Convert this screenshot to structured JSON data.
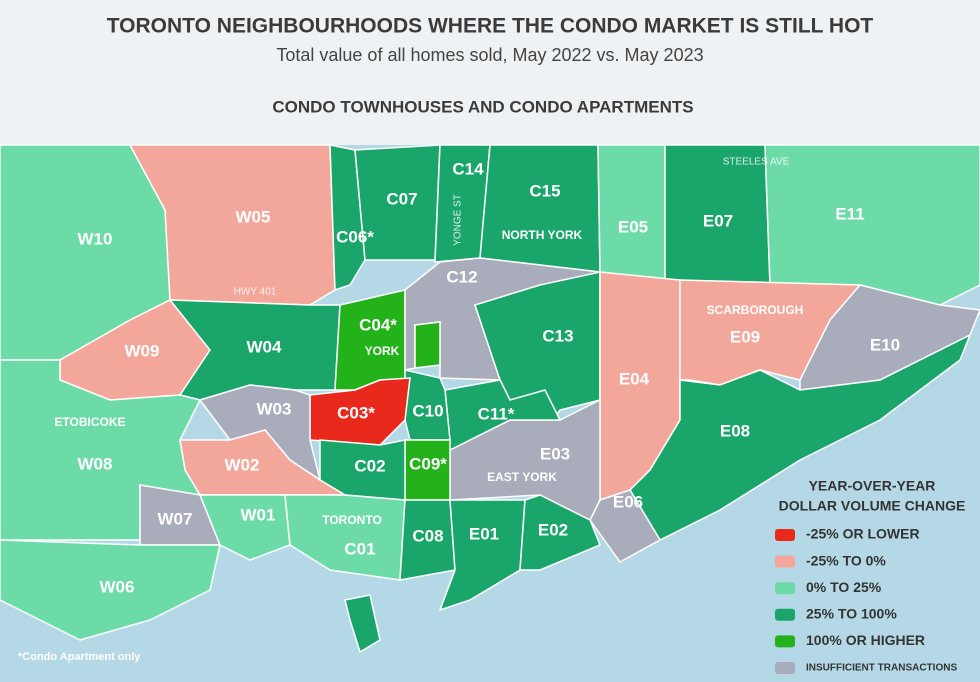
{
  "header": {
    "title": "TORONTO NEIGHBOURHOODS WHERE THE CONDO MARKET IS STILL HOT",
    "subtitle": "Total value of all homes sold, May 2022 vs. May 2023",
    "section": "CONDO TOWNHOUSES AND CONDO APARTMENTS"
  },
  "regions": [
    {
      "label": "W10",
      "color": "#6ddba8"
    },
    {
      "label": "W05",
      "color": "#f3a79b"
    },
    {
      "label": "C06*",
      "color": "#1aa56a"
    },
    {
      "label": "C07",
      "color": "#1aa56a"
    },
    {
      "label": "C14",
      "color": "#1aa56a"
    },
    {
      "label": "C15",
      "color": "#1aa56a"
    },
    {
      "label": "E05",
      "color": "#6ddba8"
    },
    {
      "label": "E07",
      "color": "#1aa56a"
    },
    {
      "label": "E11",
      "color": "#6ddba8"
    },
    {
      "label": "W09",
      "color": "#f3a79b"
    },
    {
      "label": "W04",
      "color": "#1aa56a"
    },
    {
      "label": "C04*",
      "color": "#23b21a"
    },
    {
      "label": "C12",
      "color": "#a9acbb"
    },
    {
      "label": "C13",
      "color": "#1aa56a"
    },
    {
      "label": "E04",
      "color": "#f3a79b"
    },
    {
      "label": "E09",
      "color": "#f3a79b"
    },
    {
      "label": "E10",
      "color": "#a9acbb"
    },
    {
      "label": "E08",
      "color": "#1aa56a"
    },
    {
      "label": "E06",
      "color": "#a9acbb"
    },
    {
      "label": "E03",
      "color": "#a9acbb"
    },
    {
      "label": "C11*",
      "color": "#1aa56a"
    },
    {
      "label": "C10",
      "color": "#1aa56a"
    },
    {
      "label": "C03*",
      "color": "#e8291c"
    },
    {
      "label": "C09*",
      "color": "#23b21a"
    },
    {
      "label": "C02",
      "color": "#1aa56a"
    },
    {
      "label": "W03",
      "color": "#a9acbb"
    },
    {
      "label": "W02",
      "color": "#f3a79b"
    },
    {
      "label": "W08",
      "color": "#6ddba8"
    },
    {
      "label": "W07",
      "color": "#a9acbb"
    },
    {
      "label": "W06",
      "color": "#6ddba8"
    },
    {
      "label": "W01",
      "color": "#6ddba8"
    },
    {
      "label": "C01",
      "color": "#6ddba8"
    },
    {
      "label": "C08",
      "color": "#1aa56a"
    },
    {
      "label": "E01",
      "color": "#1aa56a"
    },
    {
      "label": "E02",
      "color": "#1aa56a"
    }
  ],
  "area_labels": [
    "ETOBICOKE",
    "YORK",
    "TORONTO",
    "EAST YORK",
    "NORTH YORK",
    "SCARBOROUGH"
  ],
  "roads": [
    "HWY 401",
    "STEELES AVE",
    "YONGE ST"
  ],
  "legend": {
    "title": [
      "YEAR-OVER-YEAR",
      "DOLLAR VOLUME CHANGE"
    ],
    "items": [
      {
        "label": "-25% OR LOWER",
        "color": "#e8291c"
      },
      {
        "label": "-25% TO 0%",
        "color": "#f3a79b"
      },
      {
        "label": "0% TO 25%",
        "color": "#6ddba8"
      },
      {
        "label": "25% TO 100%",
        "color": "#1aa56a"
      },
      {
        "label": "100% OR HIGHER",
        "color": "#23b21a"
      },
      {
        "label": "INSUFFICIENT TRANSACTIONS",
        "color": "#a9acbb"
      }
    ]
  },
  "footnote": "*Condo Apartment only"
}
